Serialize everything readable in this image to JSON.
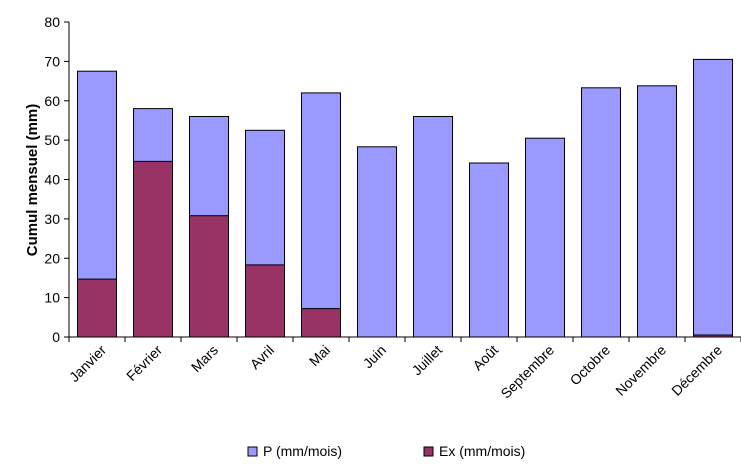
{
  "chart_data": {
    "type": "bar",
    "categories": [
      "Janvier",
      "Février",
      "Mars",
      "Avril",
      "Mai",
      "Juin",
      "Juillet",
      "Août",
      "Septembre",
      "Octobre",
      "Novembre",
      "Décembre"
    ],
    "series": [
      {
        "name": "P (mm/mois)",
        "color": "#9999ff",
        "values": [
          67.5,
          58,
          56,
          52.5,
          62,
          48.3,
          56,
          44.2,
          50.5,
          63.3,
          63.8,
          70.5
        ]
      },
      {
        "name": "Ex (mm/mois)",
        "color": "#993366",
        "values": [
          14.7,
          44.6,
          30.8,
          18.3,
          7.2,
          0,
          0,
          0,
          0,
          0,
          0,
          0.5
        ]
      }
    ],
    "title": "",
    "xlabel": "",
    "ylabel": "Cumul mensuel (mm)",
    "ylim": [
      0,
      80
    ],
    "yticks": [
      0,
      10,
      20,
      30,
      40,
      50,
      60,
      70,
      80
    ],
    "grid": false,
    "overlap": true,
    "legend_position": "bottom"
  }
}
